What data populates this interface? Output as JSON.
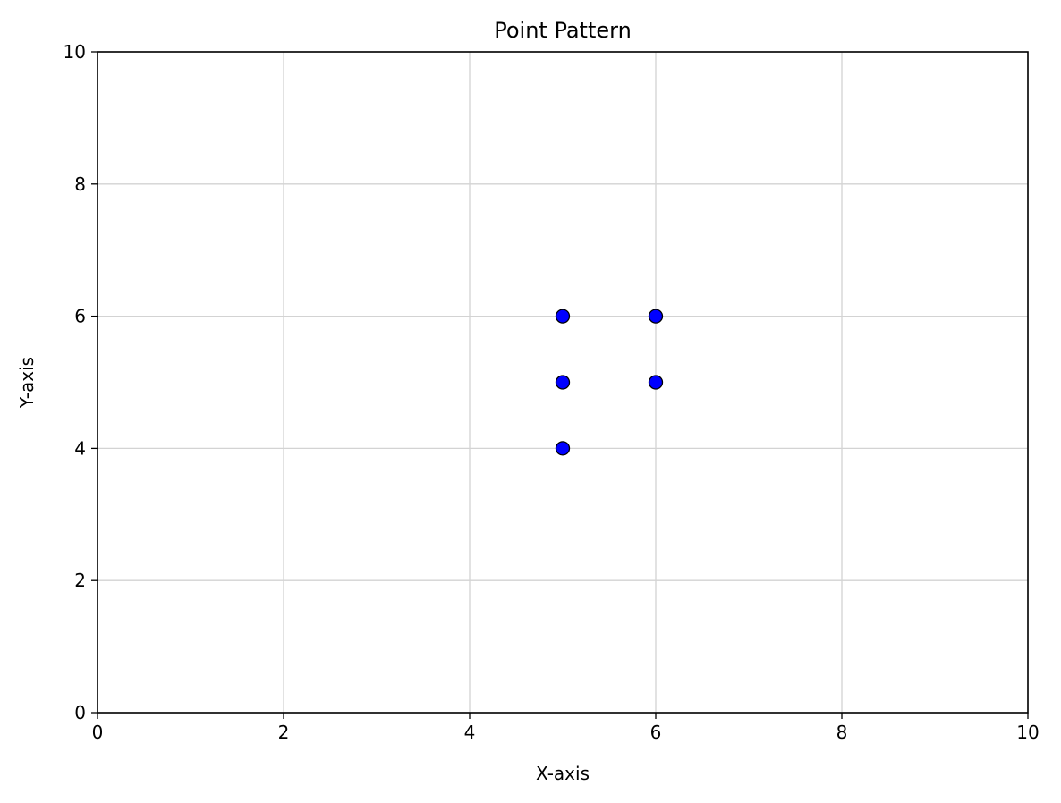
{
  "chart_data": {
    "type": "scatter",
    "title": "Point Pattern",
    "xlabel": "X-axis",
    "ylabel": "Y-axis",
    "xlim": [
      0,
      10
    ],
    "ylim": [
      0,
      10
    ],
    "xticks": [
      0,
      2,
      4,
      6,
      8,
      10
    ],
    "yticks": [
      0,
      2,
      4,
      6,
      8,
      10
    ],
    "grid": true,
    "series": [
      {
        "points": [
          {
            "x": 5,
            "y": 6
          },
          {
            "x": 6,
            "y": 6
          },
          {
            "x": 5,
            "y": 5
          },
          {
            "x": 6,
            "y": 5
          },
          {
            "x": 5,
            "y": 4
          }
        ],
        "color": "#0000ff",
        "edgecolor": "#000000"
      }
    ],
    "colors": {
      "grid": "#d3d3d3",
      "axis": "#000000"
    }
  }
}
